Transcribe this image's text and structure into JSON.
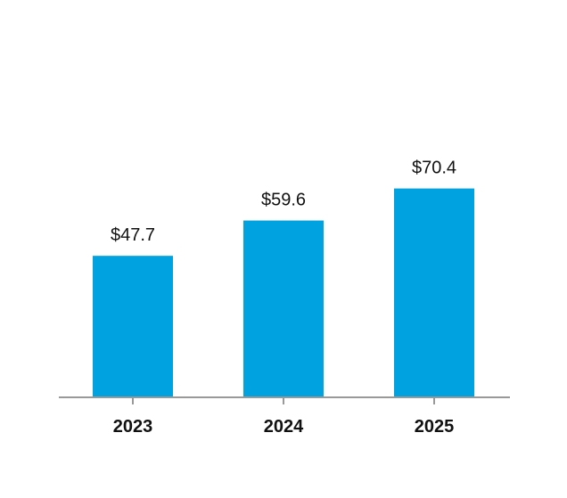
{
  "chart_data": {
    "type": "bar",
    "categories": [
      "2023",
      "2024",
      "2025"
    ],
    "values": [
      47.7,
      59.6,
      70.4
    ],
    "value_labels": [
      "$47.7",
      "$59.6",
      "$70.4"
    ],
    "title": "",
    "xlabel": "",
    "ylabel": "",
    "ylim": [
      0,
      80
    ],
    "grid": false,
    "legend": "none",
    "colors": {
      "bar": "#00a3e0",
      "axis": "#999999",
      "text": "#111111"
    }
  }
}
